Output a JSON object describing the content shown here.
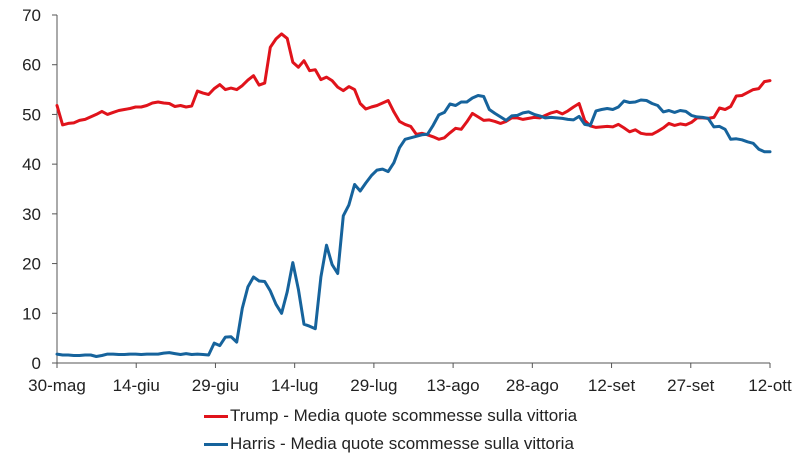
{
  "chart_data": {
    "type": "line",
    "title": "",
    "xlabel": "",
    "ylabel": "",
    "ylim": [
      0,
      70
    ],
    "yticks": [
      0,
      10,
      20,
      30,
      40,
      50,
      60,
      70
    ],
    "x_tick_labels": [
      "30-mag",
      "14-giu",
      "29-giu",
      "14-lug",
      "29-lug",
      "13-ago",
      "28-ago",
      "12-set",
      "27-set",
      "12-ott"
    ],
    "grid": false,
    "legend_position": "bottom",
    "series": [
      {
        "name": "Trump - Media quote scommesse sulla vittoria",
        "color": "#e0131b",
        "values": [
          51.8,
          47.9,
          48.2,
          48.3,
          48.8,
          49.0,
          49.5,
          50.0,
          50.6,
          50.0,
          50.4,
          50.8,
          51.0,
          51.2,
          51.5,
          51.5,
          51.8,
          52.3,
          52.5,
          52.3,
          52.2,
          51.6,
          51.8,
          51.5,
          51.7,
          54.7,
          54.3,
          54.0,
          55.2,
          56.0,
          55.0,
          55.3,
          55.0,
          55.8,
          56.9,
          57.8,
          55.9,
          56.3,
          63.5,
          65.2,
          66.2,
          65.3,
          60.5,
          59.5,
          60.8,
          58.8,
          59.0,
          57.0,
          57.5,
          56.8,
          55.5,
          54.8,
          55.6,
          55.0,
          52.2,
          51.1,
          51.5,
          51.8,
          52.3,
          52.8,
          50.5,
          48.6,
          48.0,
          47.6,
          46.0,
          46.2,
          45.9,
          45.5,
          45.0,
          45.3,
          46.3,
          47.2,
          47.0,
          48.5,
          50.2,
          49.5,
          48.8,
          48.9,
          48.6,
          48.2,
          48.6,
          49.3,
          49.3,
          49.0,
          49.2,
          49.4,
          49.3,
          49.8,
          50.3,
          50.6,
          50.1,
          50.7,
          51.5,
          52.2,
          48.8,
          47.7,
          47.4,
          47.5,
          47.6,
          47.5,
          48.0,
          47.3,
          46.5,
          46.9,
          46.2,
          46.0,
          46.0,
          46.6,
          47.3,
          48.2,
          47.8,
          48.1,
          47.9,
          48.4,
          49.3,
          49.3,
          49.2,
          49.4,
          51.3,
          51.0,
          51.6,
          53.7,
          53.8,
          54.4,
          55.0,
          55.2,
          56.6,
          56.8
        ]
      },
      {
        "name": "Harris - Media quote scommesse sulla vittoria",
        "color": "#16639c",
        "values": [
          1.8,
          1.6,
          1.6,
          1.5,
          1.5,
          1.6,
          1.6,
          1.3,
          1.5,
          1.8,
          1.8,
          1.7,
          1.7,
          1.8,
          1.8,
          1.7,
          1.8,
          1.8,
          1.8,
          2.0,
          2.1,
          1.9,
          1.7,
          1.9,
          1.7,
          1.8,
          1.7,
          1.6,
          4.0,
          3.5,
          5.2,
          5.3,
          4.2,
          11.0,
          15.3,
          17.3,
          16.5,
          16.4,
          14.5,
          11.8,
          10.0,
          14.3,
          20.2,
          14.8,
          7.8,
          7.4,
          6.9,
          17.3,
          23.7,
          19.8,
          18.0,
          29.6,
          31.8,
          35.9,
          34.6,
          36.2,
          37.7,
          38.8,
          39.0,
          38.5,
          40.3,
          43.3,
          45.0,
          45.3,
          45.6,
          45.9,
          46.0,
          47.8,
          49.9,
          50.4,
          52.1,
          51.8,
          52.5,
          52.5,
          53.3,
          53.8,
          53.6,
          51.0,
          50.2,
          49.5,
          48.8,
          49.7,
          49.8,
          50.3,
          50.5,
          50.0,
          49.7,
          49.3,
          49.4,
          49.3,
          49.2,
          49.0,
          48.9,
          49.6,
          48.0,
          47.8,
          50.7,
          51.0,
          51.2,
          51.0,
          51.5,
          52.7,
          52.4,
          52.5,
          52.9,
          52.8,
          52.2,
          51.8,
          50.5,
          50.8,
          50.4,
          50.8,
          50.6,
          49.8,
          49.5,
          49.4,
          49.2,
          47.5,
          47.6,
          47.0,
          45.0,
          45.1,
          44.9,
          44.5,
          44.2,
          43.0,
          42.5,
          42.5
        ]
      }
    ]
  }
}
